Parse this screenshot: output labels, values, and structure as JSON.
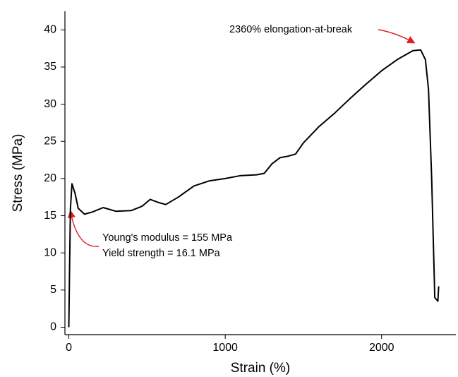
{
  "chart_data": {
    "type": "line",
    "x_label": "Strain (%)",
    "y_label": "Stress (MPa)",
    "annotations": [
      "2360% elongation-at-break",
      "Young's modulus = 155 MPa",
      "Yield strength = 16.1 MPa"
    ],
    "x": [
      0,
      5,
      10,
      20,
      40,
      60,
      100,
      150,
      220,
      300,
      400,
      470,
      520,
      570,
      620,
      700,
      800,
      900,
      1000,
      1100,
      1200,
      1250,
      1300,
      1350,
      1400,
      1450,
      1500,
      1600,
      1700,
      1800,
      1900,
      2000,
      2100,
      2200,
      2250,
      2280,
      2300,
      2320,
      2335,
      2340,
      2360,
      2365
    ],
    "values": [
      0,
      8,
      16,
      19.3,
      18,
      16,
      15.2,
      15.5,
      16.1,
      15.6,
      15.7,
      16.3,
      17.2,
      16.8,
      16.5,
      17.5,
      19,
      19.7,
      20,
      20.4,
      20.5,
      20.7,
      22,
      22.8,
      23,
      23.3,
      24.8,
      27,
      28.8,
      30.8,
      32.7,
      34.5,
      36,
      37.2,
      37.3,
      36,
      32,
      20,
      8,
      4,
      3.5,
      5.5
    ],
    "color": "#000000",
    "xlim": [
      -25,
      2475
    ],
    "ylim": [
      -1,
      42.5
    ],
    "xticks": [
      0,
      1000,
      2000
    ],
    "yticks": [
      0,
      5,
      10,
      15,
      20,
      25,
      30,
      35,
      40
    ]
  }
}
